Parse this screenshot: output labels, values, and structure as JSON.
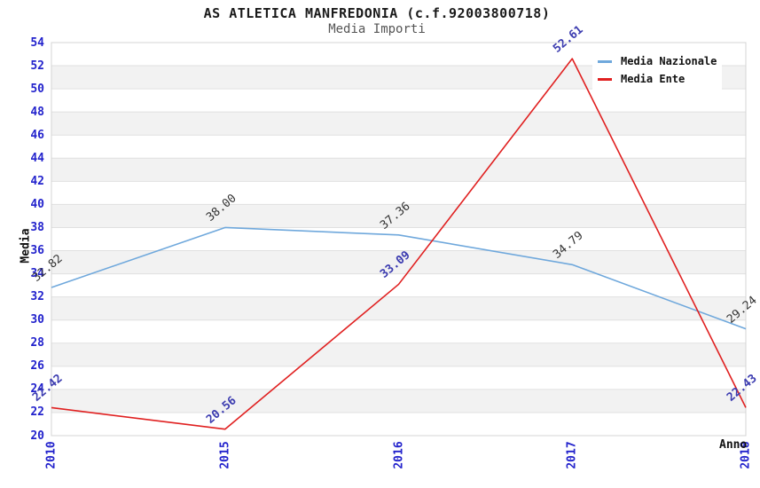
{
  "title": "AS ATLETICA MANFREDONIA (c.f.92003800718)",
  "subtitle": "Media Importi",
  "chart_data": {
    "type": "line",
    "title": "AS ATLETICA MANFREDONIA (c.f.92003800718)",
    "subtitle": "Media Importi",
    "xlabel": "Anno",
    "ylabel": "Media",
    "categories": [
      "2010",
      "2015",
      "2016",
      "2017",
      "2018"
    ],
    "series": [
      {
        "name": "Media Nazionale",
        "id": "media-nazionale",
        "color": "#6fa8dc",
        "label_color": "#333333",
        "label_bold": false,
        "values": [
          32.82,
          38.0,
          37.36,
          34.79,
          29.24
        ]
      },
      {
        "name": "Media Ente",
        "id": "media-ente",
        "color": "#e02020",
        "label_color": "#3c3cb0",
        "label_bold": true,
        "values": [
          22.42,
          20.56,
          33.09,
          52.61,
          22.43
        ]
      }
    ],
    "ylim": [
      20,
      54
    ],
    "ytick_step": 2,
    "grid": true,
    "band_fill": true,
    "legend_position": "top-right",
    "value_label_decimals": 2
  },
  "style": {
    "tick_label_color": "#2222cc",
    "band_color": "#f2f2f2",
    "gridline_color": "#e0e0e0",
    "plot_border_color": "#d4d4d4",
    "title_color": "#1a1a1a",
    "subtitle_color": "#555555"
  }
}
